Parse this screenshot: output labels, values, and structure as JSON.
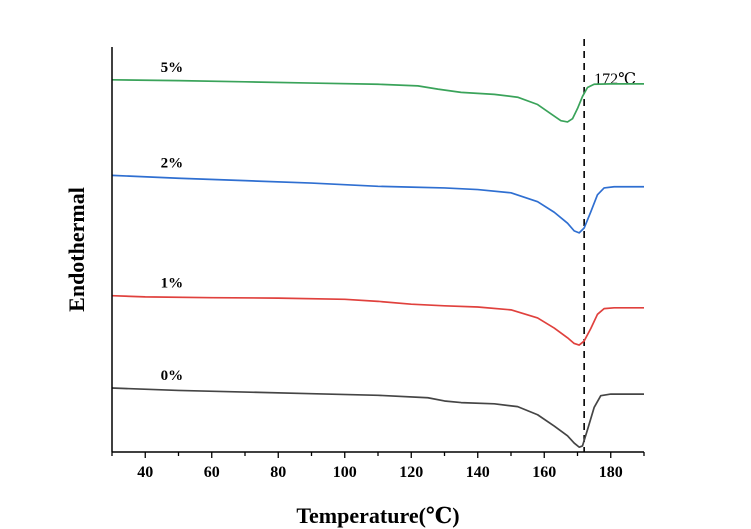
{
  "chart_data": {
    "type": "line",
    "title": "",
    "xlabel": "Temperature(℃)",
    "ylabel": "Endothermal",
    "xlim": [
      30,
      190
    ],
    "ylim": [
      0,
      1
    ],
    "x_ticks": [
      40,
      60,
      80,
      100,
      120,
      140,
      160,
      180
    ],
    "y_ticks_visible": false,
    "grid": false,
    "legend": "none (series labeled directly above each curve)",
    "reference_line": {
      "x": 172,
      "style": "dashed",
      "label": "172℃"
    },
    "series": [
      {
        "name": "5%",
        "color": "#3aa35a",
        "points": [
          [
            30,
            0.919
          ],
          [
            50,
            0.917
          ],
          [
            70,
            0.914
          ],
          [
            90,
            0.911
          ],
          [
            110,
            0.908
          ],
          [
            122,
            0.904
          ],
          [
            128,
            0.896
          ],
          [
            135,
            0.888
          ],
          [
            145,
            0.883
          ],
          [
            152,
            0.876
          ],
          [
            158,
            0.858
          ],
          [
            162,
            0.835
          ],
          [
            165,
            0.818
          ],
          [
            167,
            0.815
          ],
          [
            168.5,
            0.823
          ],
          [
            170,
            0.848
          ],
          [
            171.5,
            0.878
          ],
          [
            173,
            0.9
          ],
          [
            175,
            0.908
          ],
          [
            180,
            0.909
          ],
          [
            190,
            0.909
          ]
        ]
      },
      {
        "name": "2%",
        "color": "#2f6fd1",
        "points": [
          [
            30,
            0.683
          ],
          [
            50,
            0.676
          ],
          [
            70,
            0.67
          ],
          [
            90,
            0.664
          ],
          [
            100,
            0.66
          ],
          [
            110,
            0.656
          ],
          [
            120,
            0.654
          ],
          [
            130,
            0.652
          ],
          [
            140,
            0.648
          ],
          [
            150,
            0.64
          ],
          [
            158,
            0.618
          ],
          [
            163,
            0.592
          ],
          [
            167,
            0.565
          ],
          [
            169,
            0.546
          ],
          [
            170.5,
            0.541
          ],
          [
            172,
            0.553
          ],
          [
            174,
            0.593
          ],
          [
            176,
            0.635
          ],
          [
            178,
            0.652
          ],
          [
            181,
            0.655
          ],
          [
            190,
            0.655
          ]
        ]
      },
      {
        "name": "1%",
        "color": "#e0413d",
        "points": [
          [
            30,
            0.386
          ],
          [
            40,
            0.383
          ],
          [
            60,
            0.381
          ],
          [
            80,
            0.38
          ],
          [
            100,
            0.377
          ],
          [
            110,
            0.372
          ],
          [
            120,
            0.365
          ],
          [
            130,
            0.361
          ],
          [
            140,
            0.358
          ],
          [
            150,
            0.351
          ],
          [
            158,
            0.331
          ],
          [
            163,
            0.306
          ],
          [
            167,
            0.282
          ],
          [
            169,
            0.268
          ],
          [
            170.5,
            0.264
          ],
          [
            172,
            0.274
          ],
          [
            174,
            0.305
          ],
          [
            176,
            0.34
          ],
          [
            178,
            0.354
          ],
          [
            181,
            0.356
          ],
          [
            190,
            0.356
          ]
        ]
      },
      {
        "name": "0%",
        "color": "#454545",
        "points": [
          [
            30,
            0.158
          ],
          [
            50,
            0.152
          ],
          [
            70,
            0.148
          ],
          [
            90,
            0.144
          ],
          [
            110,
            0.14
          ],
          [
            125,
            0.134
          ],
          [
            130,
            0.126
          ],
          [
            135,
            0.122
          ],
          [
            145,
            0.119
          ],
          [
            152,
            0.112
          ],
          [
            158,
            0.092
          ],
          [
            163,
            0.064
          ],
          [
            167,
            0.04
          ],
          [
            169,
            0.022
          ],
          [
            170.5,
            0.012
          ],
          [
            171.5,
            0.015
          ],
          [
            173,
            0.055
          ],
          [
            175,
            0.11
          ],
          [
            177,
            0.139
          ],
          [
            180,
            0.143
          ],
          [
            190,
            0.143
          ]
        ]
      }
    ]
  }
}
